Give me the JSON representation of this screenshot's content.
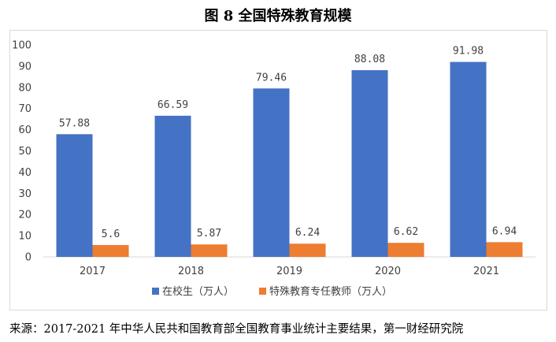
{
  "title": "图 8  全国特殊教育规模",
  "source": "来源：2017-2021 年中华人民共和国教育部全国教育事业统计主要结果，第一财经研究院",
  "colors": {
    "series1": "#4472C4",
    "series2": "#ED7D31",
    "grid": "#d9d9d9",
    "text": "#404040"
  },
  "chart_data": {
    "type": "bar",
    "title": "图 8  全国特殊教育规模",
    "categories": [
      "2017",
      "2018",
      "2019",
      "2020",
      "2021"
    ],
    "series": [
      {
        "name": "在校生（万人）",
        "values": [
          57.88,
          66.59,
          79.46,
          88.08,
          91.98
        ],
        "labels": [
          "57.88",
          "66.59",
          "79.46",
          "88.08",
          "91.98"
        ]
      },
      {
        "name": "特殊教育专任教师（万人）",
        "values": [
          5.6,
          5.87,
          6.24,
          6.62,
          6.94
        ],
        "labels": [
          "5.6",
          "5.87",
          "6.24",
          "6.62",
          "6.94"
        ]
      }
    ],
    "yticks": [
      "0",
      "10",
      "20",
      "30",
      "40",
      "50",
      "60",
      "70",
      "80",
      "90",
      "100"
    ],
    "ylim": [
      0,
      100
    ],
    "grid": false,
    "legend_position": "bottom"
  }
}
